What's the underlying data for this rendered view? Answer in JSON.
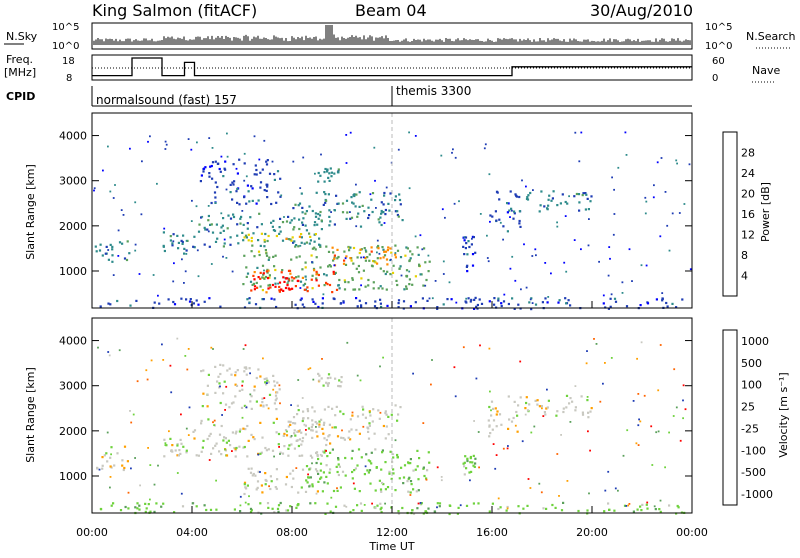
{
  "header": {
    "title": "King Salmon (fitACF)",
    "beam": "Beam 04",
    "date": "30/Aug/2010"
  },
  "noise_panel": {
    "left_label": "N.Sky",
    "right_label": "N.Search",
    "left_ticks": [
      "10^5",
      "10^0"
    ],
    "right_ticks": [
      "10^5",
      "10^0"
    ]
  },
  "freq_panel": {
    "left_label_1": "Freq.",
    "left_label_2": "[MHz]",
    "left_ticks": [
      "18",
      "8"
    ],
    "right_label": "Nave",
    "right_ticks": [
      "60",
      "0"
    ]
  },
  "cpid_panel": {
    "label": "CPID",
    "programs": [
      {
        "name": "normalsound (fast) 157",
        "start_hour": 0
      },
      {
        "name": "themis 3300",
        "start_hour": 12
      }
    ]
  },
  "x_axis": {
    "label": "Time UT",
    "ticks": [
      "00:00",
      "04:00",
      "08:00",
      "12:00",
      "16:00",
      "20:00",
      "00:00"
    ]
  },
  "power_panel": {
    "ylabel": "Slant Range [km]",
    "yticks": [
      "1000",
      "2000",
      "3000",
      "4000"
    ],
    "colorbar_label": "Power [dB]",
    "colorbar_ticks": [
      "4",
      "8",
      "12",
      "16",
      "20",
      "24",
      "28"
    ],
    "colors": [
      "#0000ff",
      "#1e3cb4",
      "#2e8b8b",
      "#5aa05a",
      "#e6d200",
      "#ff8c00",
      "#ff3c00",
      "#ff0000"
    ]
  },
  "velocity_panel": {
    "ylabel": "Slant Range [km]",
    "yticks": [
      "1000",
      "2000",
      "3000",
      "4000"
    ],
    "colorbar_label": "Velocity [m s⁻¹]",
    "colorbar_ticks": [
      "1000",
      "500",
      "100",
      "25",
      "-25",
      "-100",
      "-500",
      "-1000"
    ],
    "colors": [
      "#1e3cb4",
      "#2e8b8b",
      "#5aa05a",
      "#6ed23c",
      "#c8c8c0",
      "#ffa000",
      "#ff6400",
      "#ff0000"
    ]
  },
  "chart_data": [
    {
      "type": "line",
      "title": "N.Sky / N.Search",
      "x_range_hours": [
        0,
        24
      ],
      "y_scale": "log",
      "ylim": [
        "10^0",
        "10^5"
      ]
    },
    {
      "type": "line",
      "title": "Freq. [MHz] / Nave",
      "x_range_hours": [
        0,
        24
      ],
      "freq_ylim": [
        8,
        18
      ],
      "nave_ylim": [
        0,
        60
      ],
      "freq_steps": [
        {
          "x": 0,
          "y": 10
        },
        {
          "x": 1.6,
          "y": 10
        },
        {
          "x": 1.6,
          "y": 18
        },
        {
          "x": 2.8,
          "y": 18
        },
        {
          "x": 2.8,
          "y": 10
        },
        {
          "x": 3.7,
          "y": 10
        },
        {
          "x": 3.7,
          "y": 16
        },
        {
          "x": 4.1,
          "y": 16
        },
        {
          "x": 4.1,
          "y": 10
        },
        {
          "x": 16.8,
          "y": 10
        },
        {
          "x": 16.8,
          "y": 14
        },
        {
          "x": 24,
          "y": 14
        }
      ]
    },
    {
      "type": "heatmap",
      "title": "Power",
      "x_range_hours": [
        0,
        24
      ],
      "y_range_km": [
        180,
        4500
      ],
      "color_range_db": [
        0,
        30
      ],
      "regions": [
        {
          "x0": 0.1,
          "x1": 1.5,
          "y0": 1150,
          "y1": 1700,
          "level": 2
        },
        {
          "x0": 2.8,
          "x1": 3.8,
          "y0": 1400,
          "y1": 1900,
          "level": 2
        },
        {
          "x0": 4.0,
          "x1": 9.5,
          "y0": 1550,
          "y1": 2300,
          "level": 2
        },
        {
          "x0": 6.0,
          "x1": 9.0,
          "y0": 1650,
          "y1": 1850,
          "level": 4
        },
        {
          "x0": 8.0,
          "x1": 12.5,
          "y0": 2000,
          "y1": 2800,
          "level": 2
        },
        {
          "x0": 4.3,
          "x1": 7.5,
          "y0": 2500,
          "y1": 3500,
          "level": 1
        },
        {
          "x0": 9.0,
          "x1": 10.0,
          "y0": 3000,
          "y1": 3300,
          "level": 2
        },
        {
          "x0": 6.0,
          "x1": 13.5,
          "y0": 600,
          "y1": 1600,
          "level": 3
        },
        {
          "x0": 9.5,
          "x1": 12.5,
          "y0": 1150,
          "y1": 1550,
          "level": 5
        },
        {
          "x0": 6.3,
          "x1": 9.8,
          "y0": 550,
          "y1": 1050,
          "level": 6
        },
        {
          "x0": 6.3,
          "x1": 8.3,
          "y0": 600,
          "y1": 900,
          "level": 7
        },
        {
          "x0": 14.8,
          "x1": 15.3,
          "y0": 900,
          "y1": 1800,
          "level": 1
        },
        {
          "x0": 15.8,
          "x1": 17.1,
          "y0": 1900,
          "y1": 2800,
          "level": 1
        },
        {
          "x0": 17.1,
          "x1": 20.0,
          "y0": 2300,
          "y1": 2800,
          "level": 2
        },
        {
          "x0": 0.2,
          "x1": 23.8,
          "y0": 180,
          "y1": 430,
          "level": 1
        }
      ]
    },
    {
      "type": "heatmap",
      "title": "Velocity",
      "x_range_hours": [
        0,
        24
      ],
      "y_range_km": [
        180,
        4500
      ],
      "color_range_ms": [
        -1000,
        1000
      ],
      "regions": [
        {
          "x0": 0.1,
          "x1": 1.5,
          "y0": 1150,
          "y1": 1700,
          "level": 4
        },
        {
          "x0": 2.8,
          "x1": 3.8,
          "y0": 1400,
          "y1": 1900,
          "level": 4
        },
        {
          "x0": 4.0,
          "x1": 9.5,
          "y0": 1450,
          "y1": 2300,
          "level": 4
        },
        {
          "x0": 8.0,
          "x1": 12.3,
          "y0": 1800,
          "y1": 2600,
          "level": 4
        },
        {
          "x0": 4.3,
          "x1": 7.5,
          "y0": 2500,
          "y1": 3500,
          "level": 4
        },
        {
          "x0": 9.0,
          "x1": 10.0,
          "y0": 3000,
          "y1": 3300,
          "level": 4
        },
        {
          "x0": 6.0,
          "x1": 9.0,
          "y0": 600,
          "y1": 1200,
          "level": 4
        },
        {
          "x0": 8.5,
          "x1": 13.5,
          "y0": 650,
          "y1": 1650,
          "level": 3
        },
        {
          "x0": 14.8,
          "x1": 15.3,
          "y0": 1000,
          "y1": 1500,
          "level": 3
        },
        {
          "x0": 15.8,
          "x1": 17.0,
          "y0": 1900,
          "y1": 2800,
          "level": 4
        },
        {
          "x0": 17.1,
          "x1": 20.0,
          "y0": 2300,
          "y1": 2800,
          "level": 4
        },
        {
          "x0": 0.2,
          "x1": 23.8,
          "y0": 180,
          "y1": 430,
          "level": 3
        }
      ]
    }
  ]
}
